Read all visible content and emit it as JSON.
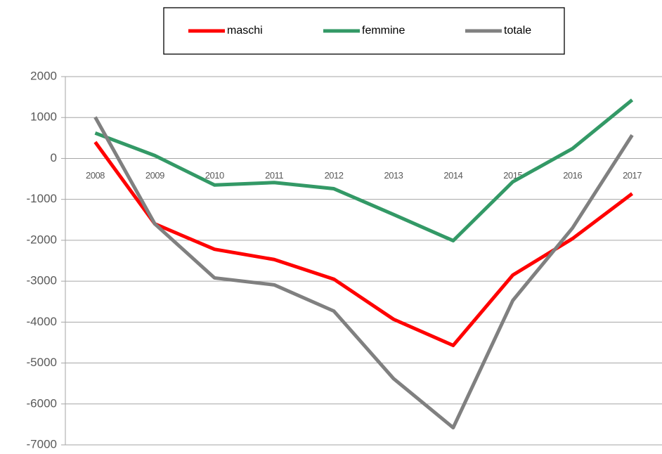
{
  "chart_data": {
    "type": "line",
    "categories": [
      "2008",
      "2009",
      "2010",
      "2011",
      "2012",
      "2013",
      "2014",
      "2015",
      "2016",
      "2017"
    ],
    "series": [
      {
        "name": "maschi",
        "color": "#ff0000",
        "values": [
          400,
          -1600,
          -2220,
          -2470,
          -2950,
          -3930,
          -4570,
          -2850,
          -1960,
          -860
        ]
      },
      {
        "name": "femmine",
        "color": "#339966",
        "values": [
          620,
          70,
          -650,
          -590,
          -740,
          -1370,
          -2010,
          -570,
          240,
          1430
        ]
      },
      {
        "name": "totale",
        "color": "#808080",
        "values": [
          1010,
          -1600,
          -2920,
          -3090,
          -3730,
          -5380,
          -6580,
          -3470,
          -1700,
          570
        ]
      }
    ],
    "ylim": [
      -7000,
      2000
    ],
    "yticks": [
      -7000,
      -6000,
      -5000,
      -4000,
      -3000,
      -2000,
      -1000,
      0,
      1000,
      2000
    ],
    "grid": true,
    "legend": "top"
  }
}
